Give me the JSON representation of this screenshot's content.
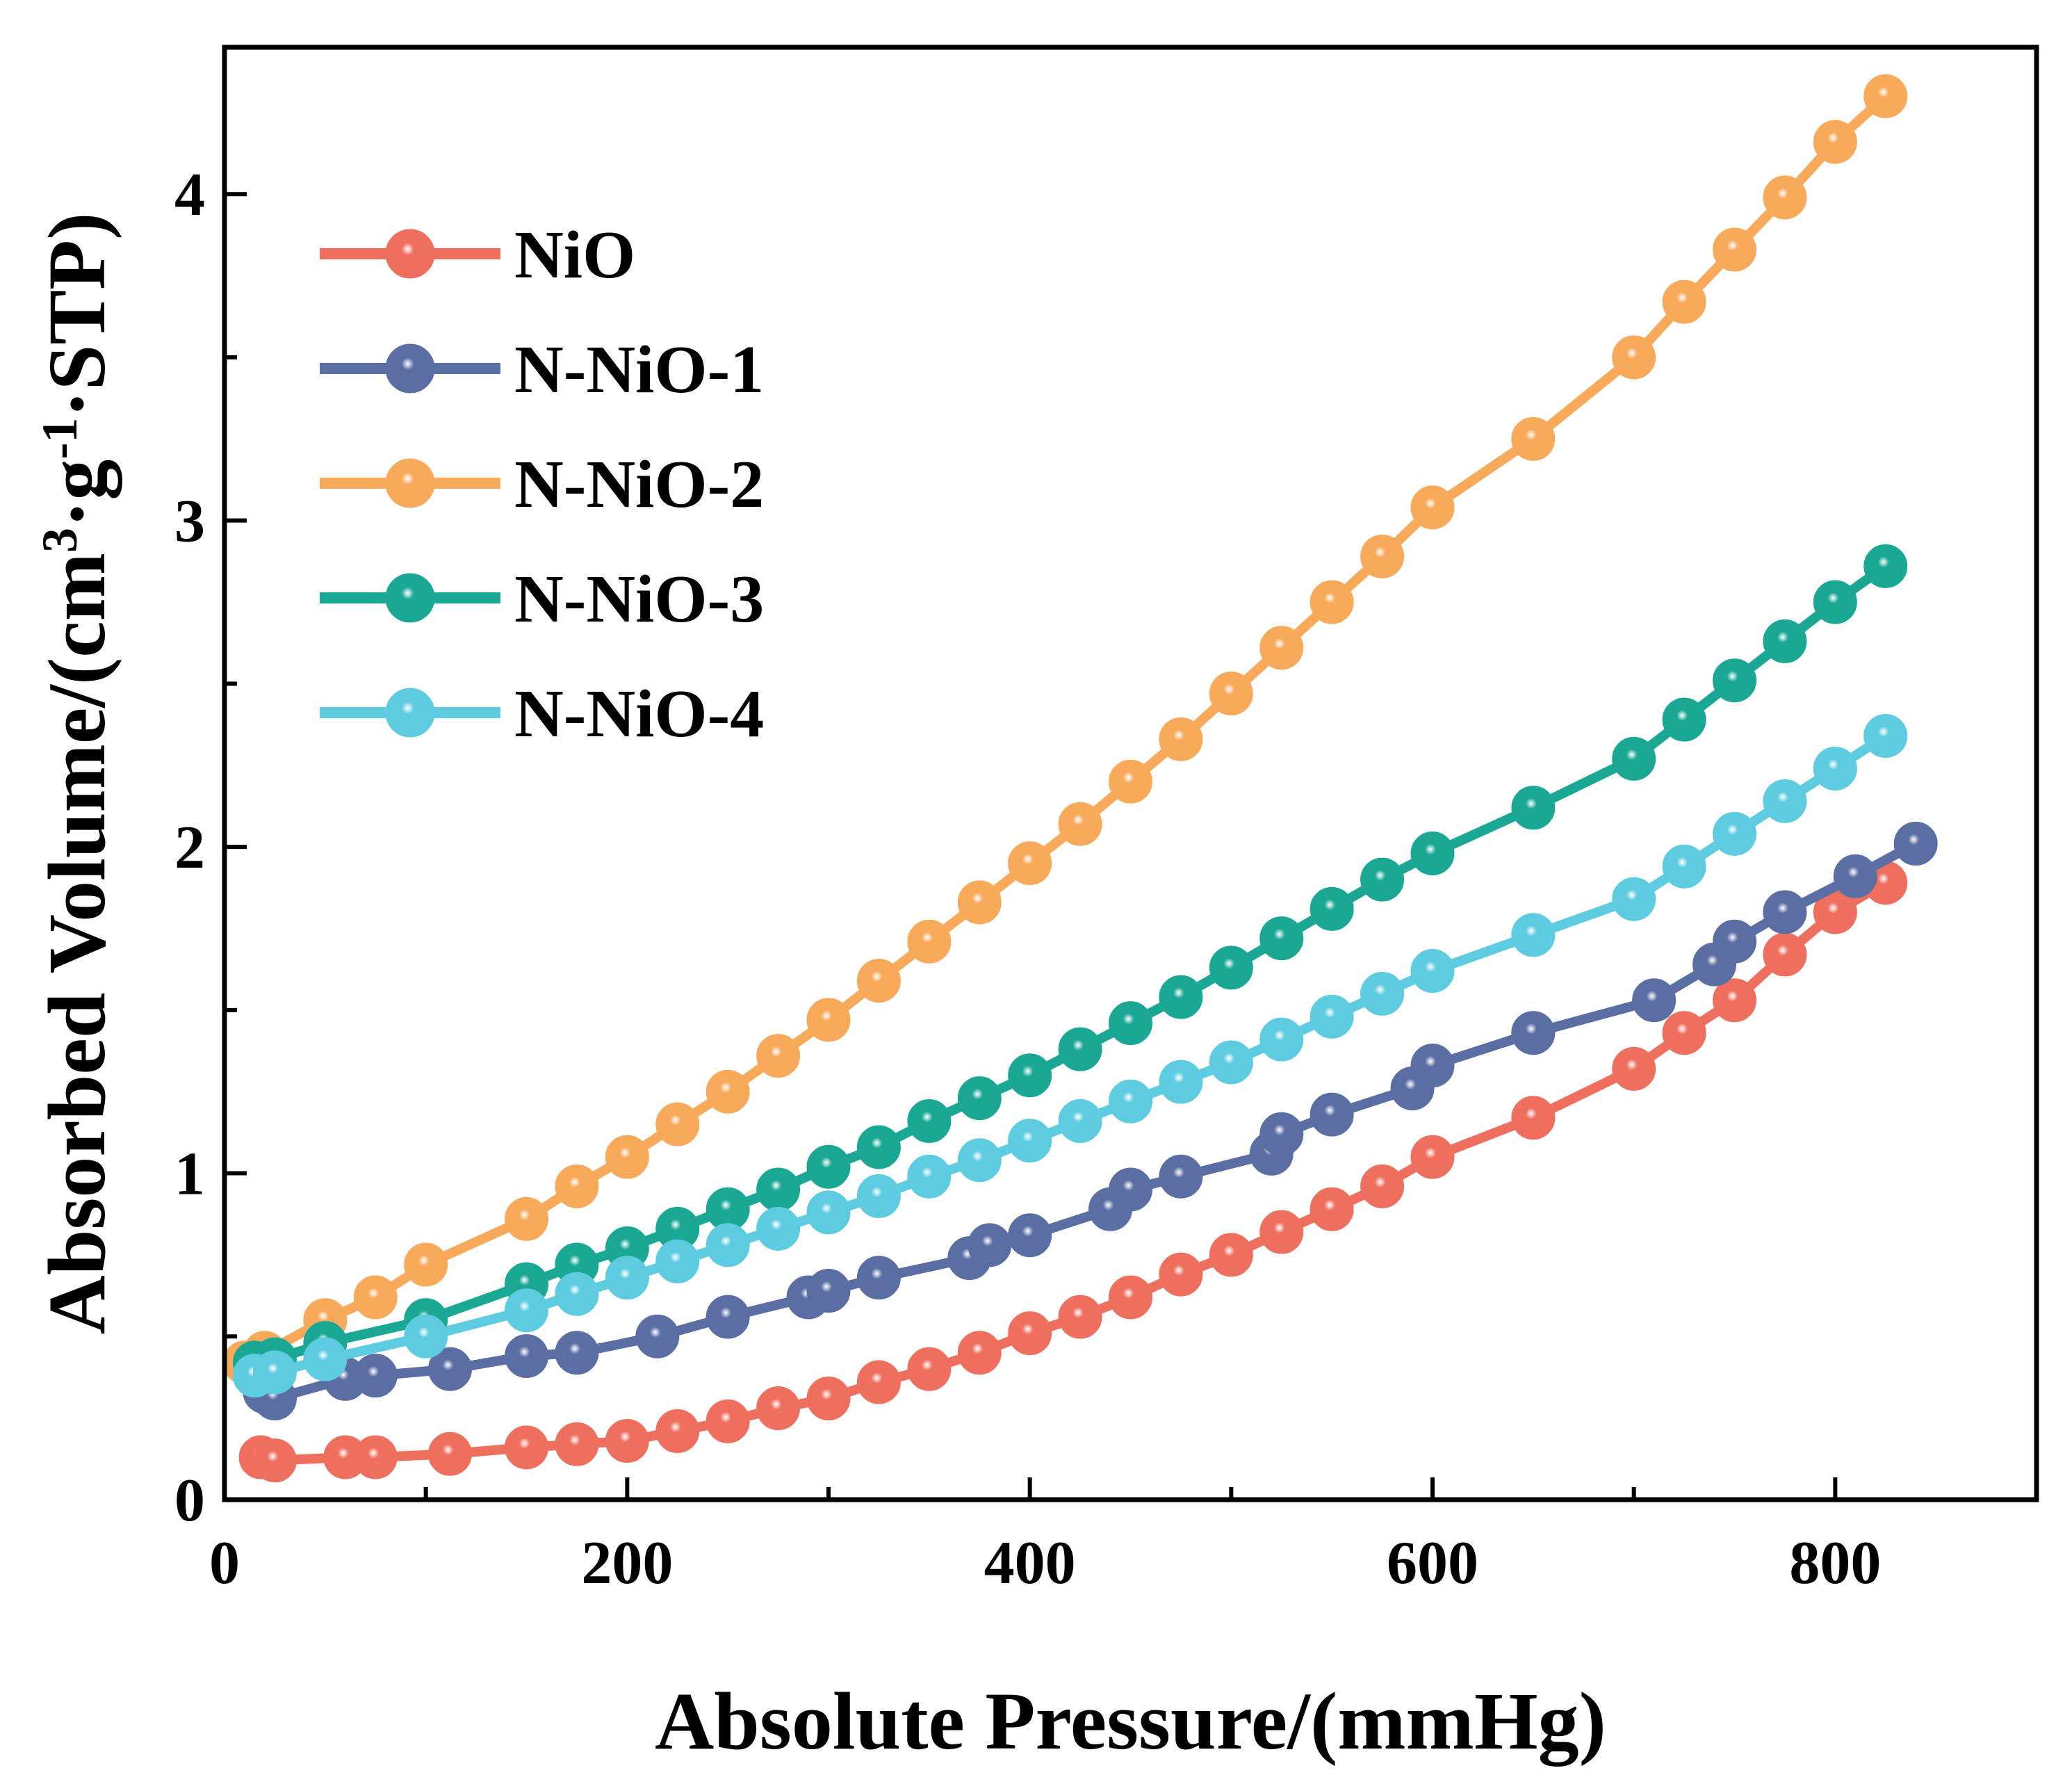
{
  "chart_data": {
    "type": "line",
    "title": "",
    "xlabel": "Absolute Pressure/(mmHg)",
    "ylabel": {
      "prefix": "Absorbed Volume/(cm",
      "sup1": "3",
      "mid": "·g",
      "sup2": "-1",
      "suffix": "·STP)"
    },
    "xlim": [
      0,
      900
    ],
    "ylim": [
      0,
      4.45
    ],
    "xticks": [
      0,
      200,
      400,
      600,
      800
    ],
    "yticks": [
      0,
      1,
      2,
      3,
      4
    ],
    "legend_position": "top-left",
    "series": [
      {
        "name": "NiO",
        "color": "#ef6f5f",
        "x": [
          18,
          25,
          60,
          75,
          112,
          150,
          175,
          200,
          225,
          250,
          275,
          300,
          325,
          350,
          375,
          400,
          425,
          450,
          475,
          500,
          525,
          550,
          575,
          600,
          650,
          700,
          725,
          750,
          775,
          800,
          825
        ],
        "y": [
          0.13,
          0.12,
          0.13,
          0.13,
          0.14,
          0.16,
          0.17,
          0.18,
          0.21,
          0.24,
          0.28,
          0.31,
          0.36,
          0.4,
          0.45,
          0.51,
          0.56,
          0.62,
          0.69,
          0.75,
          0.82,
          0.89,
          0.96,
          1.05,
          1.17,
          1.32,
          1.43,
          1.53,
          1.67,
          1.8,
          1.89
        ]
      },
      {
        "name": "N-NiO-1",
        "color": "#5b6ea3",
        "x": [
          20,
          25,
          60,
          75,
          112,
          150,
          175,
          215,
          250,
          290,
          300,
          325,
          370,
          380,
          400,
          440,
          450,
          475,
          520,
          525,
          550,
          590,
          600,
          650,
          710,
          740,
          750,
          775,
          810,
          840
        ],
        "y": [
          0.33,
          0.31,
          0.37,
          0.38,
          0.4,
          0.44,
          0.45,
          0.5,
          0.56,
          0.62,
          0.64,
          0.68,
          0.74,
          0.78,
          0.81,
          0.89,
          0.95,
          0.99,
          1.06,
          1.12,
          1.18,
          1.26,
          1.33,
          1.43,
          1.53,
          1.64,
          1.71,
          1.8,
          1.91,
          2.01
        ]
      },
      {
        "name": "N-NiO-2",
        "color": "#f8a95a",
        "x": [
          10,
          20,
          50,
          75,
          100,
          150,
          175,
          200,
          225,
          250,
          275,
          300,
          325,
          350,
          375,
          400,
          425,
          450,
          475,
          500,
          525,
          550,
          575,
          600,
          650,
          700,
          725,
          750,
          775,
          800,
          825
        ],
        "y": [
          0.42,
          0.45,
          0.55,
          0.62,
          0.72,
          0.86,
          0.96,
          1.05,
          1.15,
          1.25,
          1.36,
          1.47,
          1.59,
          1.71,
          1.83,
          1.95,
          2.07,
          2.2,
          2.33,
          2.47,
          2.61,
          2.75,
          2.89,
          3.04,
          3.25,
          3.5,
          3.67,
          3.83,
          3.99,
          4.16,
          4.3
        ]
      },
      {
        "name": "N-NiO-3",
        "color": "#1aa894",
        "x": [
          15,
          25,
          50,
          100,
          150,
          175,
          200,
          225,
          250,
          275,
          300,
          325,
          350,
          375,
          400,
          425,
          450,
          475,
          500,
          525,
          550,
          575,
          600,
          650,
          700,
          725,
          750,
          775,
          800,
          825
        ],
        "y": [
          0.42,
          0.43,
          0.48,
          0.55,
          0.66,
          0.72,
          0.77,
          0.83,
          0.89,
          0.95,
          1.02,
          1.08,
          1.16,
          1.23,
          1.3,
          1.38,
          1.46,
          1.54,
          1.63,
          1.72,
          1.81,
          1.9,
          1.98,
          2.12,
          2.27,
          2.39,
          2.51,
          2.63,
          2.75,
          2.86
        ]
      },
      {
        "name": "N-NiO-4",
        "color": "#5dcbe0",
        "x": [
          15,
          25,
          50,
          100,
          150,
          175,
          200,
          225,
          250,
          275,
          300,
          325,
          350,
          375,
          400,
          425,
          450,
          475,
          500,
          525,
          550,
          575,
          600,
          650,
          700,
          725,
          750,
          775,
          800,
          825
        ],
        "y": [
          0.38,
          0.39,
          0.43,
          0.5,
          0.58,
          0.63,
          0.68,
          0.73,
          0.78,
          0.83,
          0.88,
          0.93,
          0.99,
          1.04,
          1.1,
          1.16,
          1.22,
          1.28,
          1.34,
          1.41,
          1.48,
          1.55,
          1.62,
          1.73,
          1.84,
          1.94,
          2.04,
          2.14,
          2.24,
          2.34
        ]
      }
    ]
  }
}
